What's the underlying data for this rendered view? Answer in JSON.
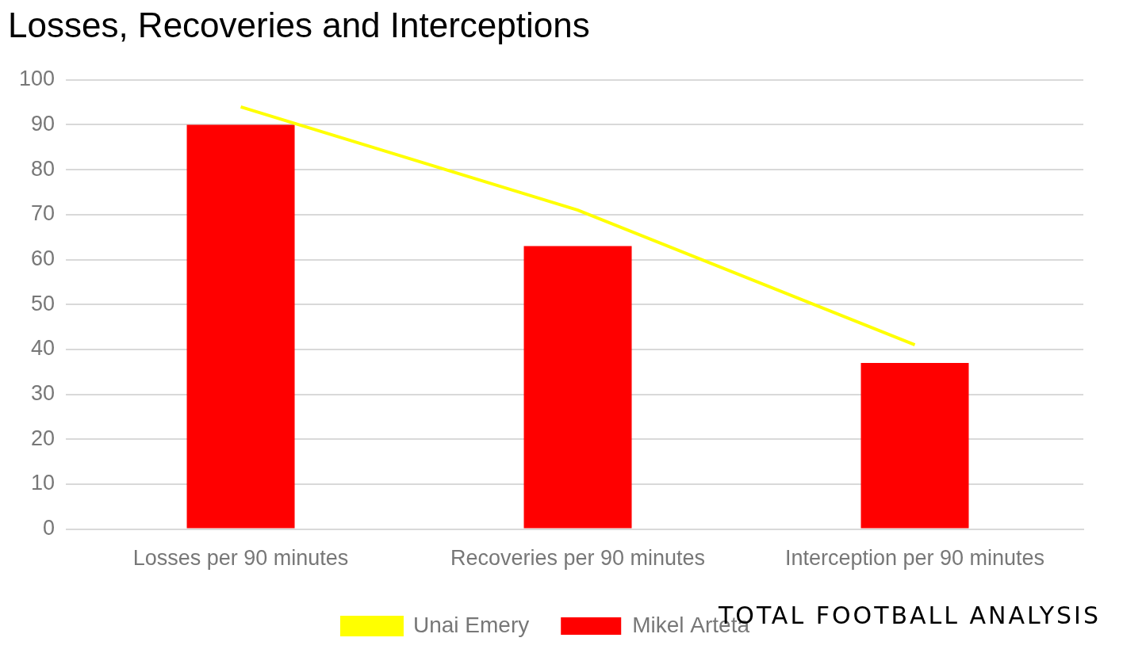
{
  "chart_data": {
    "type": "bar",
    "title": "Losses, Recoveries and Interceptions",
    "categories": [
      "Losses per 90 minutes",
      "Recoveries per 90 minutes",
      "Interception per 90 minutes"
    ],
    "series": [
      {
        "name": "Mikel Arteta",
        "type": "bar",
        "color": "#ff0000",
        "values": [
          90,
          63,
          37
        ]
      },
      {
        "name": "Unai Emery",
        "type": "line",
        "color": "#ffff00",
        "marker": "none",
        "values": [
          94,
          71,
          41
        ]
      }
    ],
    "ylim": [
      0,
      100
    ],
    "yticks": [
      0,
      10,
      20,
      30,
      40,
      50,
      60,
      70,
      80,
      90,
      100
    ],
    "grid": true,
    "legend": "bottom",
    "annotations": [
      "Total Football Analysis"
    ]
  }
}
